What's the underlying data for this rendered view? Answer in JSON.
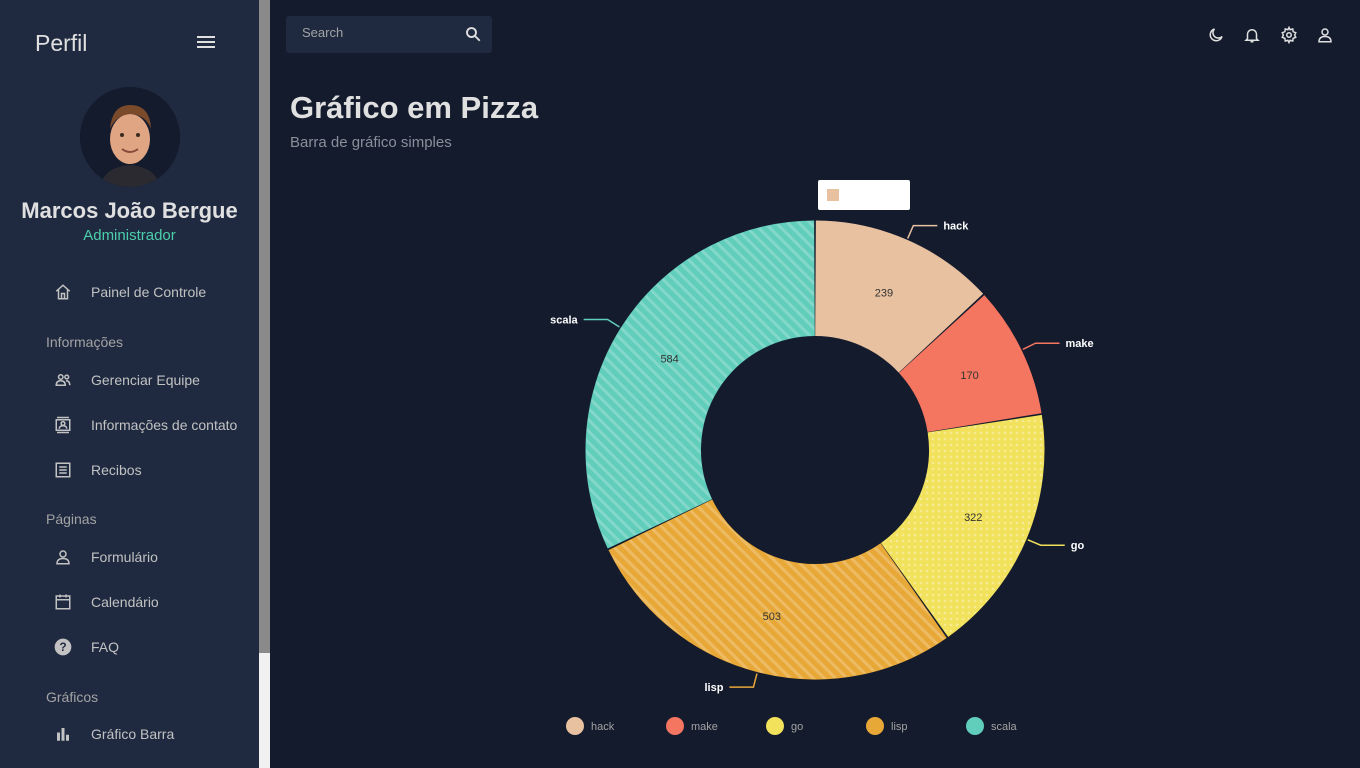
{
  "sidebar": {
    "title": "Perfil",
    "user": {
      "name": "Marcos João Bergue",
      "role": "Administrador"
    },
    "items": {
      "dashboard": "Painel de Controle",
      "section_info": "Informações",
      "team": "Gerenciar Equipe",
      "contacts": "Informações de contato",
      "invoices": "Recibos",
      "section_pages": "Páginas",
      "form": "Formulário",
      "calendar": "Calendário",
      "faq": "FAQ",
      "section_charts": "Gráficos",
      "bar": "Gráfico Barra"
    }
  },
  "search": {
    "placeholder": "Search"
  },
  "header": {
    "title": "Gráfico em Pizza",
    "subtitle": "Barra de gráfico simples"
  },
  "colors": {
    "accent": "#4cceac",
    "background": "#141b2d",
    "panel": "#1f2a40"
  },
  "chart_data": {
    "type": "pie",
    "inner_radius_ratio": 0.5,
    "legend_position": "bottom",
    "slices": [
      {
        "label": "hack",
        "value": 239,
        "color": "#e8c1a0",
        "pattern": "none"
      },
      {
        "label": "make",
        "value": 170,
        "color": "#f47560",
        "pattern": "none"
      },
      {
        "label": "go",
        "value": 322,
        "color": "#f1e15b",
        "pattern": "dots"
      },
      {
        "label": "lisp",
        "value": 503,
        "color": "#e8a838",
        "pattern": "lines"
      },
      {
        "label": "scala",
        "value": 584,
        "color": "#61cdbb",
        "pattern": "lines"
      }
    ]
  }
}
